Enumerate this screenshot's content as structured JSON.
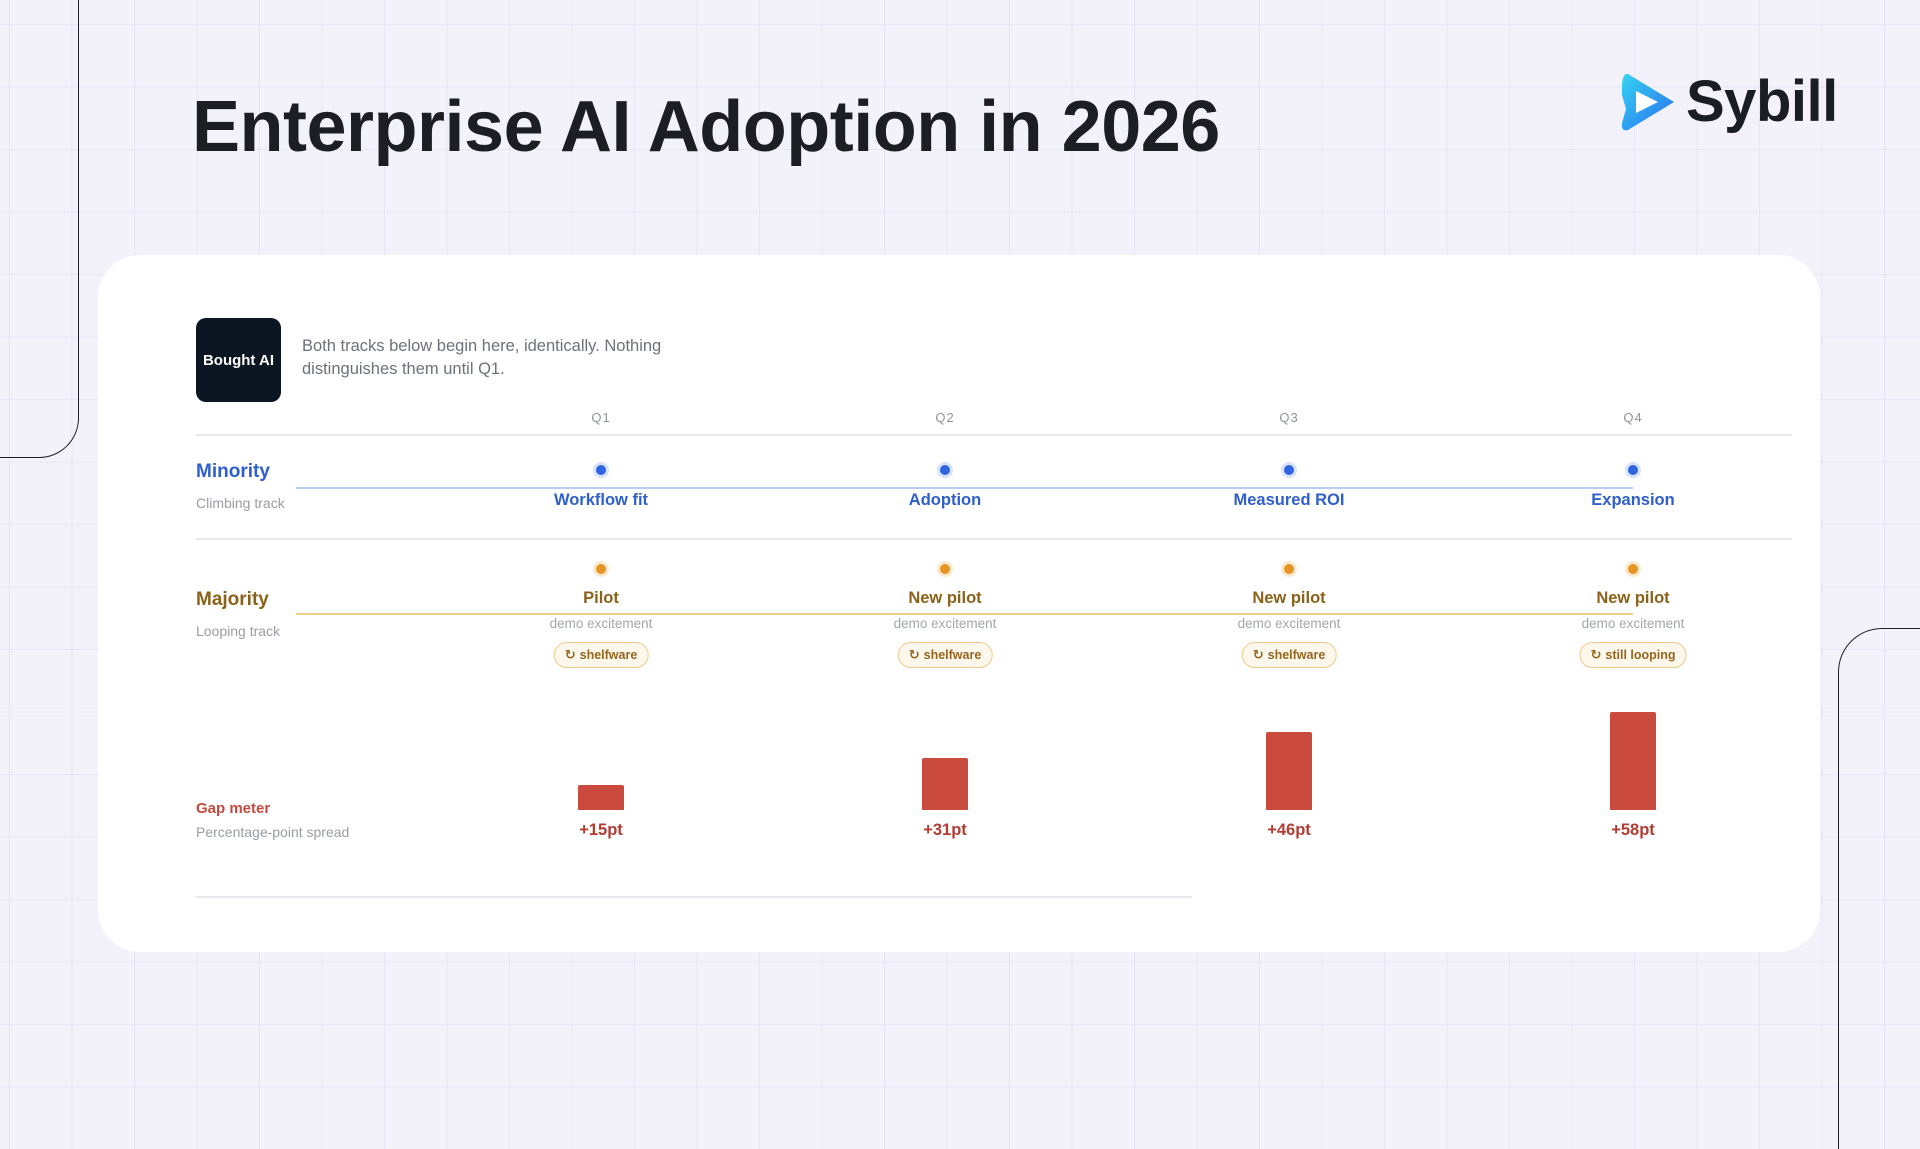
{
  "page": {
    "title": "Enterprise AI Adoption in 2026",
    "brand": "Sybill"
  },
  "colors": {
    "background": "#f3f2fb",
    "minority_accent": "#2f5fcb",
    "majority_accent": "#8a6219",
    "majority_track": "#f0cf8a",
    "gap_bar": "#cb4a3e",
    "badge_bg": "#0c1622"
  },
  "icons": {
    "logo": "sybill-play-arrow-logo",
    "loop": "refresh-loop-icon"
  },
  "start": {
    "badge": "Bought AI",
    "text": "Both tracks below begin here, identically. Nothing distinguishes them until Q1."
  },
  "quarters": [
    "Q1",
    "Q2",
    "Q3",
    "Q4"
  ],
  "minority": {
    "title": "Minority",
    "subtitle": "Climbing track",
    "stages": [
      "Workflow fit",
      "Adoption",
      "Measured ROI",
      "Expansion"
    ]
  },
  "majority": {
    "title": "Majority",
    "subtitle": "Looping track",
    "stages": [
      {
        "label": "Pilot",
        "sub": "demo excitement",
        "tag": "shelfware"
      },
      {
        "label": "New pilot",
        "sub": "demo excitement",
        "tag": "shelfware"
      },
      {
        "label": "New pilot",
        "sub": "demo excitement",
        "tag": "shelfware"
      },
      {
        "label": "New pilot",
        "sub": "demo excitement",
        "tag": "still looping"
      }
    ]
  },
  "gap": {
    "title": "Gap meter",
    "subtitle": "Percentage-point spread"
  },
  "chart_data": {
    "type": "bar",
    "categories": [
      "Q1",
      "Q2",
      "Q3",
      "Q4"
    ],
    "values": [
      15,
      31,
      46,
      58
    ],
    "value_labels": [
      "+15pt",
      "+31pt",
      "+46pt",
      "+58pt"
    ],
    "title": "Gap meter",
    "ylabel": "Percentage-point spread",
    "ylim": [
      0,
      58
    ]
  }
}
